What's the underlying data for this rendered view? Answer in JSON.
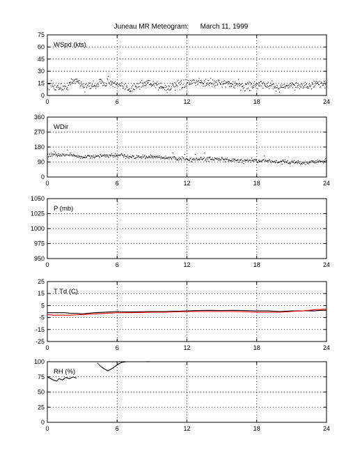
{
  "title": "Juneau MR Meteogram:      March 11, 1999",
  "colors": {
    "black": "#000000",
    "red": "#ff0000",
    "grid": "#000000"
  },
  "chart_data": [
    {
      "type": "scatter",
      "label": "WSpd (kts)",
      "xlim": [
        0,
        24
      ],
      "ylim": [
        0,
        75
      ],
      "xticks": [
        0,
        6,
        12,
        18,
        24
      ],
      "yticks": [
        0,
        15,
        30,
        45,
        60,
        75
      ],
      "grid": true,
      "series": [
        {
          "color": "#000000",
          "style": "dots",
          "mean": 13,
          "spread": 4,
          "x": [
            0,
            1.5,
            2.5,
            3.2,
            4.5,
            5.2,
            6,
            7,
            8,
            8.8,
            10,
            12,
            13,
            14,
            15,
            16,
            17,
            18,
            19,
            20,
            21,
            22,
            23,
            24
          ],
          "y": [
            12,
            9,
            20,
            10,
            15,
            18,
            12,
            9,
            12,
            17,
            9,
            14,
            17,
            15,
            16,
            13,
            11,
            14,
            12,
            10,
            13,
            12,
            13,
            15
          ]
        }
      ]
    },
    {
      "type": "scatter",
      "label": "WDir",
      "xlim": [
        0,
        24
      ],
      "ylim": [
        0,
        360
      ],
      "xticks": [
        0,
        6,
        12,
        18,
        24
      ],
      "yticks": [
        0,
        90,
        180,
        270,
        360
      ],
      "grid": true,
      "series": [
        {
          "color": "#000000",
          "style": "dots",
          "spread": 9,
          "x": [
            0,
            2,
            3,
            4,
            6,
            8,
            10,
            12,
            14,
            16,
            18,
            20,
            22,
            24
          ],
          "y": [
            130,
            133,
            120,
            125,
            128,
            120,
            118,
            105,
            110,
            100,
            100,
            92,
            85,
            98
          ]
        }
      ]
    },
    {
      "type": "line",
      "label": "P (mb)",
      "xlim": [
        0,
        24
      ],
      "ylim": [
        950,
        1050
      ],
      "xticks": [
        0,
        6,
        12,
        18,
        24
      ],
      "yticks": [
        950,
        975,
        1000,
        1025,
        1050
      ],
      "grid": true,
      "series": []
    },
    {
      "type": "line",
      "label": "T Td (C)",
      "xlim": [
        0,
        24
      ],
      "ylim": [
        -25,
        25
      ],
      "xticks": [
        0,
        6,
        12,
        18,
        24
      ],
      "yticks": [
        -25,
        -15,
        -5,
        5,
        15,
        25
      ],
      "grid": true,
      "series": [
        {
          "color": "#000000",
          "x": [
            0,
            0.5,
            1,
            1.5,
            2,
            2.5,
            3,
            3.5,
            4,
            5,
            6,
            7,
            8,
            9,
            10,
            11,
            12,
            13,
            14,
            15,
            16,
            17,
            18,
            19,
            20,
            21,
            22,
            23,
            23.5,
            24
          ],
          "y": [
            -1,
            -1,
            -1,
            -1,
            -1.5,
            -1.5,
            -2,
            -1.5,
            -1,
            -0.5,
            0,
            -0.3,
            -0.2,
            0,
            0,
            0.2,
            0.5,
            0.8,
            1,
            0.8,
            1,
            0.8,
            0.5,
            0.5,
            0,
            0.5,
            0.5,
            0.5,
            1,
            1
          ]
        },
        {
          "color": "#ff0000",
          "x": [
            0,
            0.5,
            1,
            2,
            3,
            4,
            5,
            6,
            7,
            8,
            9,
            10,
            11,
            12,
            13,
            14,
            15,
            16,
            17,
            18,
            19,
            20,
            21,
            22,
            23,
            24
          ],
          "y": [
            -2.5,
            -3,
            -3,
            -3,
            -2.5,
            -2,
            -1.5,
            -1,
            -1,
            -0.8,
            -0.5,
            -0.5,
            -0.3,
            0,
            0,
            0,
            0,
            0,
            -0.2,
            -0.5,
            -0.5,
            -0.5,
            0,
            0.5,
            1.5,
            2
          ]
        }
      ]
    },
    {
      "type": "line",
      "label": "RH (%)",
      "xlim": [
        0,
        24
      ],
      "ylim": [
        0,
        100
      ],
      "xticks": [
        0,
        6,
        12,
        18,
        24
      ],
      "yticks": [
        0,
        25,
        50,
        75,
        100
      ],
      "grid": true,
      "series": [
        {
          "color": "#000000",
          "x": [
            0,
            0.2,
            0.5,
            0.8,
            1.0,
            1.3,
            1.6,
            1.9,
            2.2,
            2.5
          ],
          "y": [
            75,
            73,
            70,
            68,
            72,
            70,
            74,
            72,
            75,
            73
          ]
        },
        {
          "color": "#000000",
          "x": [
            4.3,
            4.6,
            4.9,
            5.2,
            5.5,
            5.8,
            6.1,
            6.4,
            6.8
          ],
          "y": [
            98,
            92,
            88,
            85,
            88,
            92,
            96,
            99,
            100
          ]
        },
        {
          "color": "#000000",
          "x": [
            8.5,
            8.8
          ],
          "y": [
            100,
            100
          ]
        }
      ]
    }
  ]
}
